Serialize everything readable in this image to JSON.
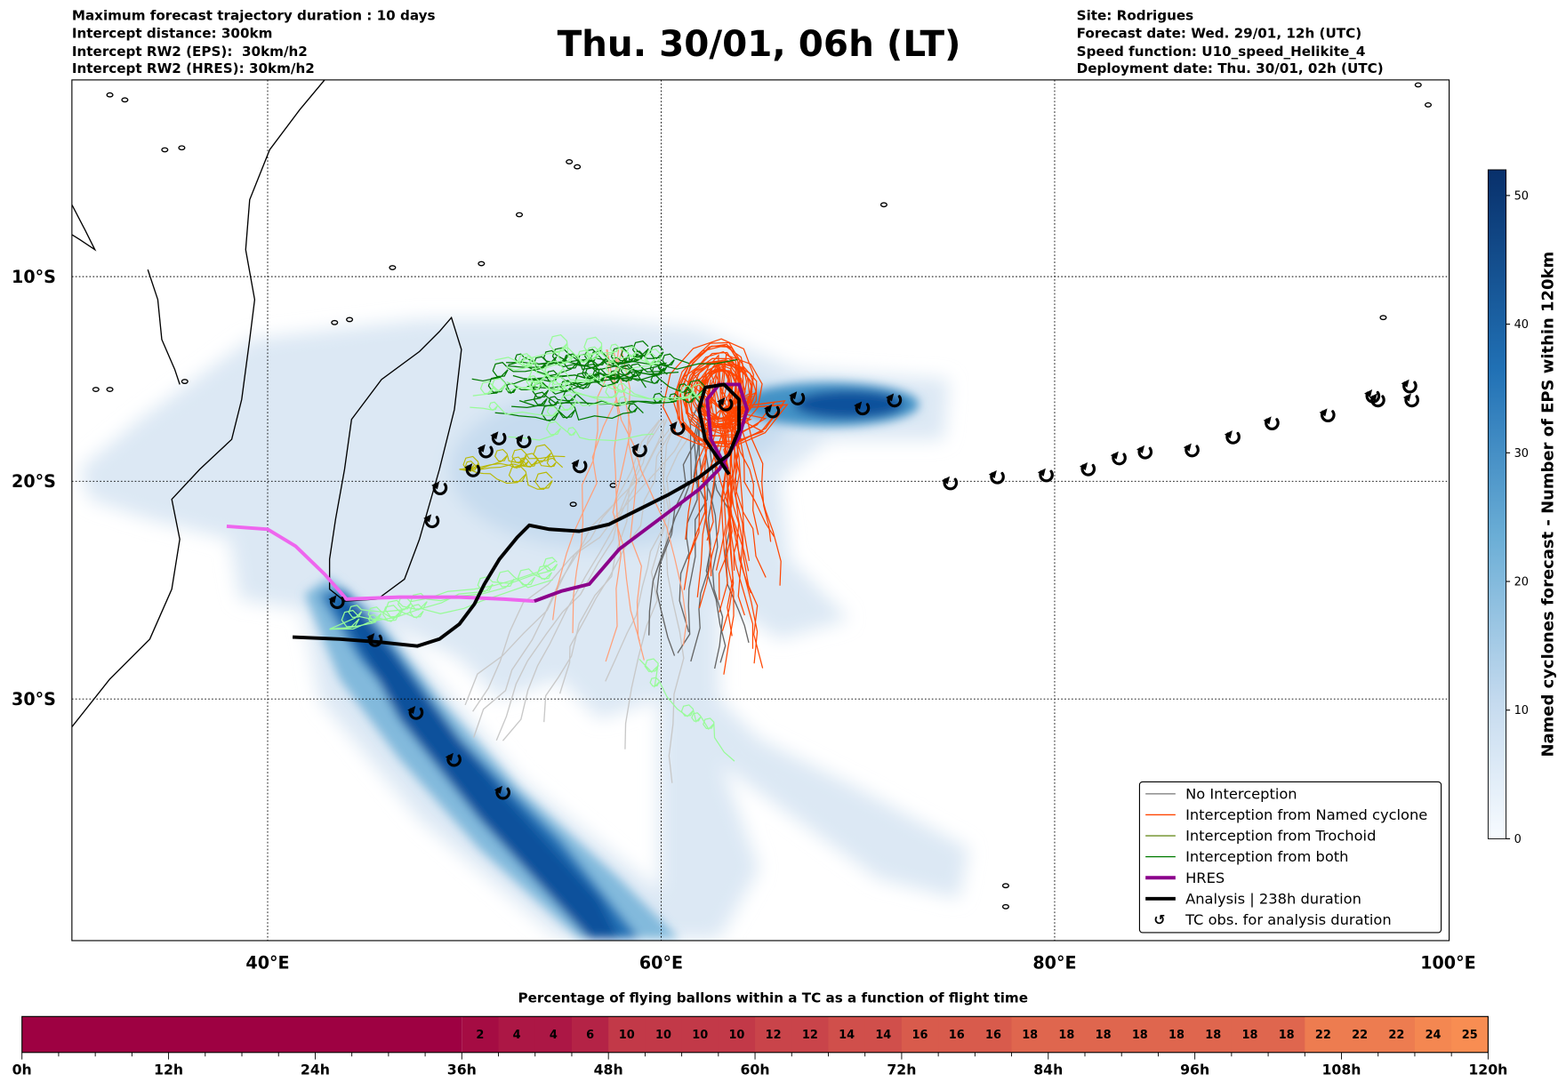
{
  "header": {
    "left": [
      "Maximum forecast trajectory duration : 10 days",
      "Intercept distance: 300km",
      "Intercept RW2 (EPS):  30km/h2",
      "Intercept RW2 (HRES): 30km/h2"
    ],
    "title": "Thu. 30/01, 06h (LT)",
    "right": [
      "Site: Rodrigues",
      "Forecast date: Wed. 29/01, 12h (UTC)",
      "Speed function: U10_speed_Helikite_4",
      "Deployment date: Thu. 30/01, 02h (UTC)"
    ]
  },
  "map": {
    "lat_labels": [
      "10°S",
      "20°S",
      "30°S"
    ],
    "lon_labels": [
      "40°E",
      "60°E",
      "80°E",
      "100°E"
    ]
  },
  "legend": {
    "items": [
      {
        "label": "No Interception",
        "color": "#777777"
      },
      {
        "label": "Interception from Named cyclone",
        "color": "#ff4500"
      },
      {
        "label": "Interception from Trochoid",
        "color": "#6b8e23"
      },
      {
        "label": "Interception from both",
        "color": "#007a00"
      },
      {
        "label": "HRES",
        "color": "#8b008b"
      },
      {
        "label": "Analysis | 238h duration",
        "color": "#000000"
      },
      {
        "label": "TC obs. for analysis duration",
        "color": "#000000"
      }
    ]
  },
  "colorbar": {
    "label": "Named cyclones forecast - Number of EPS within 120km",
    "ticks": [
      "0",
      "10",
      "20",
      "30",
      "40",
      "50"
    ],
    "range": [
      0,
      52
    ]
  },
  "timebar": {
    "title": "Percentage of flying ballons within a TC as a function of flight time",
    "hour_ticks": [
      "0h",
      "12h",
      "24h",
      "36h",
      "48h",
      "60h",
      "72h",
      "84h",
      "96h",
      "108h",
      "120h"
    ],
    "segment_hours": 3,
    "start_hour": 36,
    "values": [
      "2",
      "4",
      "4",
      "6",
      "10",
      "10",
      "10",
      "10",
      "12",
      "12",
      "14",
      "14",
      "16",
      "16",
      "16",
      "18",
      "18",
      "18",
      "18",
      "18",
      "18",
      "18",
      "18",
      "22",
      "22",
      "22",
      "24",
      "25"
    ]
  },
  "colors": {
    "hres_pink": "#ee66ee",
    "hres": "#8b008b",
    "analysis": "#000000",
    "density_dark": "#08306b",
    "density_light": "#dde9f5"
  }
}
